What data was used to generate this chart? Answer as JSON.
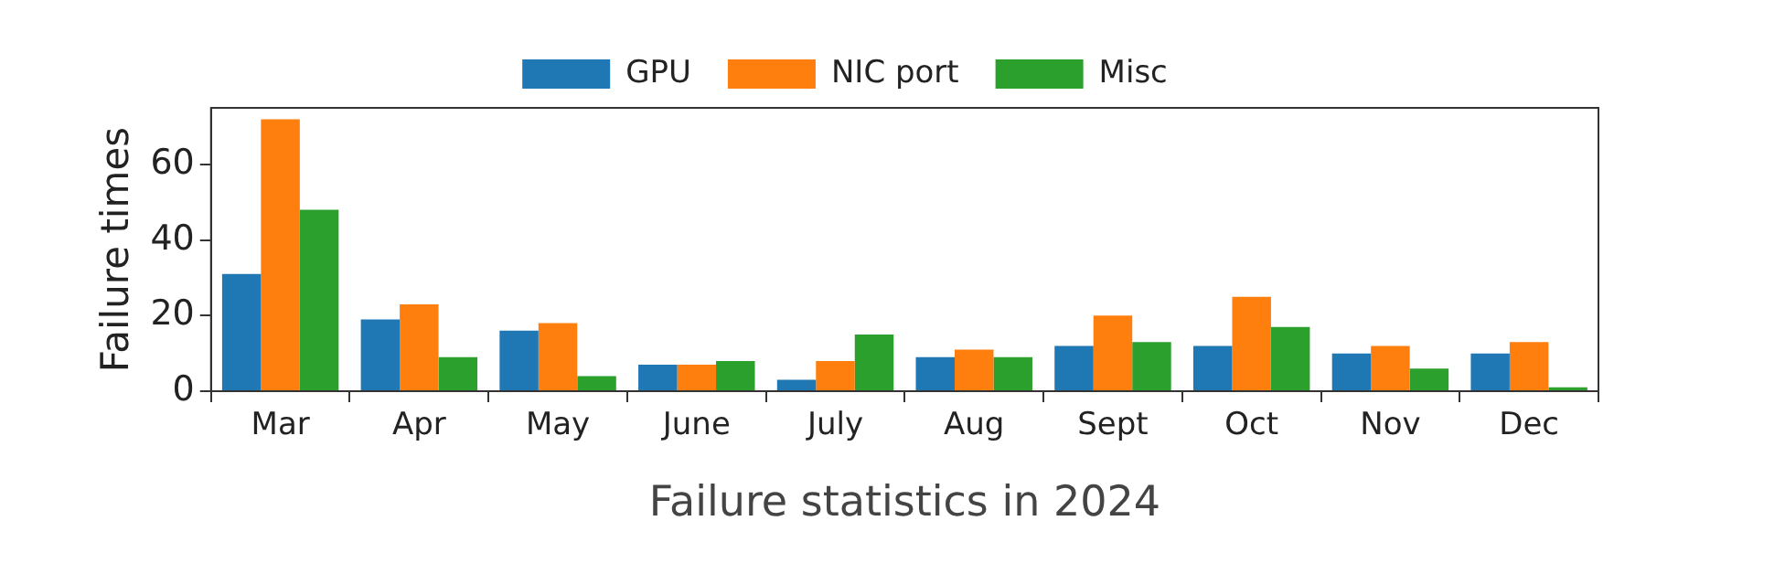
{
  "chart_data": {
    "type": "bar",
    "xlabel": "Failure statistics in 2024",
    "ylabel": "Failure times",
    "categories": [
      "Mar",
      "Apr",
      "May",
      "June",
      "July",
      "Aug",
      "Sept",
      "Oct",
      "Nov",
      "Dec"
    ],
    "series": [
      {
        "name": "GPU",
        "color": "#1f77b4",
        "values": [
          31,
          19,
          16,
          7,
          3,
          9,
          12,
          12,
          10,
          10
        ]
      },
      {
        "name": "NIC port",
        "color": "#ff7f0e",
        "values": [
          72,
          23,
          18,
          7,
          8,
          11,
          20,
          25,
          12,
          13
        ]
      },
      {
        "name": "Misc",
        "color": "#2ca02c",
        "values": [
          48,
          9,
          4,
          8,
          15,
          9,
          13,
          17,
          6,
          1
        ]
      }
    ],
    "ylim": [
      0,
      75
    ],
    "yticks": [
      0,
      20,
      40,
      60
    ],
    "grid": false,
    "legend": "top"
  }
}
